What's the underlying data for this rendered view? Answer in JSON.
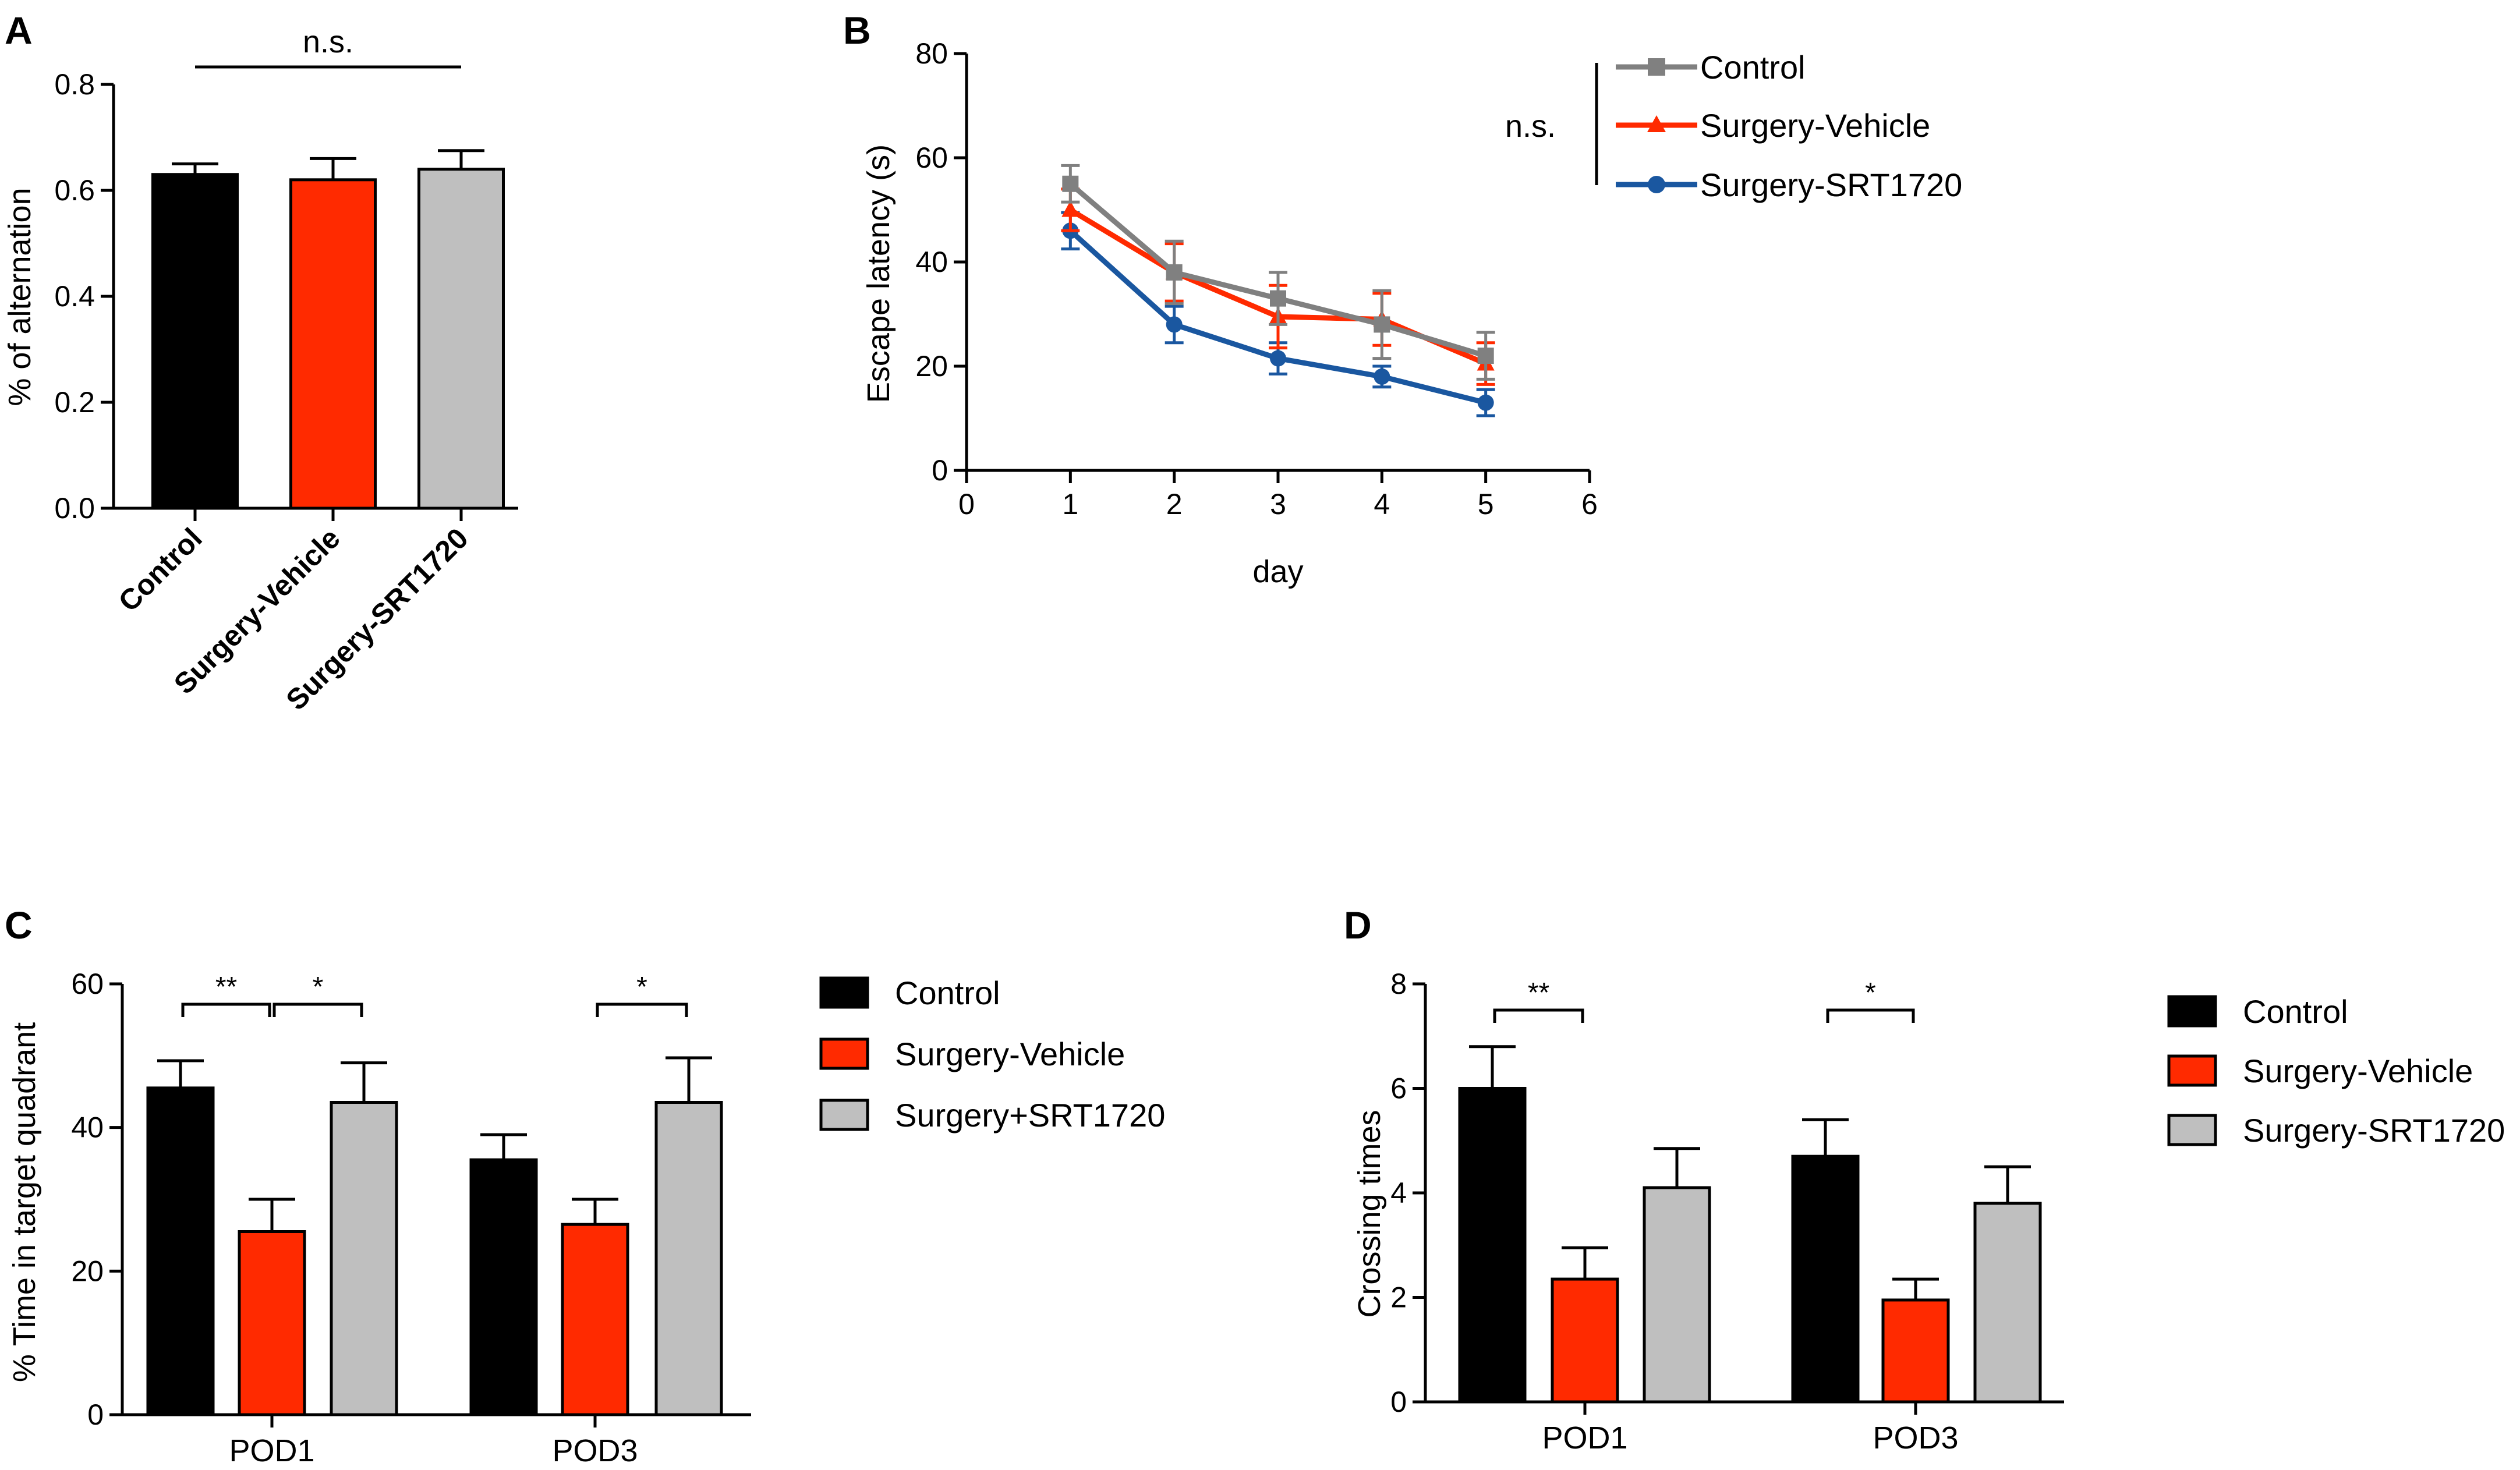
{
  "colors": {
    "black": "#000000",
    "red": "#ff2a00",
    "gray": "#bfbfbf",
    "line_gray": "#808080",
    "line_red": "#ff2a00",
    "line_blue": "#1a57a0"
  },
  "chart_data": [
    {
      "panel": "A",
      "type": "bar",
      "ylabel": "% of alternation",
      "ylim": [
        0,
        0.8
      ],
      "yticks": [
        "0.0",
        "0.2",
        "0.4",
        "0.6",
        "0.8"
      ],
      "categories": [
        "Control",
        "Surgery-Vehicle",
        "Surgery-SRT1720"
      ],
      "values": [
        0.63,
        0.62,
        0.64
      ],
      "errors": [
        0.02,
        0.04,
        0.035
      ],
      "significance": [
        {
          "label": "n.s.",
          "from": 0,
          "to": 2
        }
      ]
    },
    {
      "panel": "B",
      "type": "line",
      "xlabel": "day",
      "ylabel": "Escape latency (s)",
      "xlim": [
        0,
        6
      ],
      "ylim": [
        0,
        80
      ],
      "xticks": [
        "0",
        "1",
        "2",
        "3",
        "4",
        "5",
        "6"
      ],
      "yticks": [
        "0",
        "20",
        "40",
        "60",
        "80"
      ],
      "x": [
        1,
        2,
        3,
        4,
        5
      ],
      "series": [
        {
          "name": "Control",
          "values": [
            55,
            38,
            33,
            28,
            22
          ],
          "errors": [
            3.5,
            6,
            5,
            6.5,
            4.5
          ]
        },
        {
          "name": "Surgery-Vehicle",
          "values": [
            50,
            38,
            29.5,
            29,
            20.5
          ],
          "errors": [
            4,
            5.5,
            6,
            5,
            4
          ]
        },
        {
          "name": "Surgery-SRT1720",
          "values": [
            46,
            28,
            21.5,
            18,
            13
          ],
          "errors": [
            3.5,
            3.5,
            3,
            2,
            2.5
          ]
        }
      ],
      "significance_label": "n.s."
    },
    {
      "panel": "C",
      "type": "bar",
      "ylabel": "% Time in target quadrant",
      "ylim": [
        0,
        60
      ],
      "yticks": [
        "0",
        "20",
        "40",
        "60"
      ],
      "categories": [
        "POD1",
        "POD3"
      ],
      "series": [
        {
          "name": "Control",
          "values": [
            45.5,
            35.5
          ],
          "errors": [
            3.8,
            3.5
          ]
        },
        {
          "name": "Surgery-Vehicle",
          "values": [
            25.5,
            26.5
          ],
          "errors": [
            4.5,
            3.5
          ]
        },
        {
          "name": "Surgery+SRT1720",
          "values": [
            43.5,
            43.5
          ],
          "errors": [
            5.5,
            6.2
          ]
        }
      ],
      "significance": [
        {
          "group": 0,
          "from": 0,
          "to": 1,
          "label": "**"
        },
        {
          "group": 0,
          "from": 1,
          "to": 2,
          "label": "*"
        },
        {
          "group": 1,
          "from": 1,
          "to": 2,
          "label": "*"
        }
      ]
    },
    {
      "panel": "D",
      "type": "bar",
      "ylabel": "Crossing times",
      "ylim": [
        0,
        8
      ],
      "yticks": [
        "0",
        "2",
        "4",
        "6",
        "8"
      ],
      "categories": [
        "POD1",
        "POD3"
      ],
      "series": [
        {
          "name": "Control",
          "values": [
            6.0,
            4.7
          ],
          "errors": [
            0.8,
            0.7
          ]
        },
        {
          "name": "Surgery-Vehicle",
          "values": [
            2.35,
            1.95
          ],
          "errors": [
            0.6,
            0.4
          ]
        },
        {
          "name": "Surgery-SRT1720",
          "values": [
            4.1,
            3.8
          ],
          "errors": [
            0.75,
            0.7
          ]
        }
      ],
      "significance": [
        {
          "group": 0,
          "from": 0,
          "to": 1,
          "label": "**"
        },
        {
          "group": 1,
          "from": 0,
          "to": 1,
          "label": "*"
        }
      ]
    }
  ]
}
